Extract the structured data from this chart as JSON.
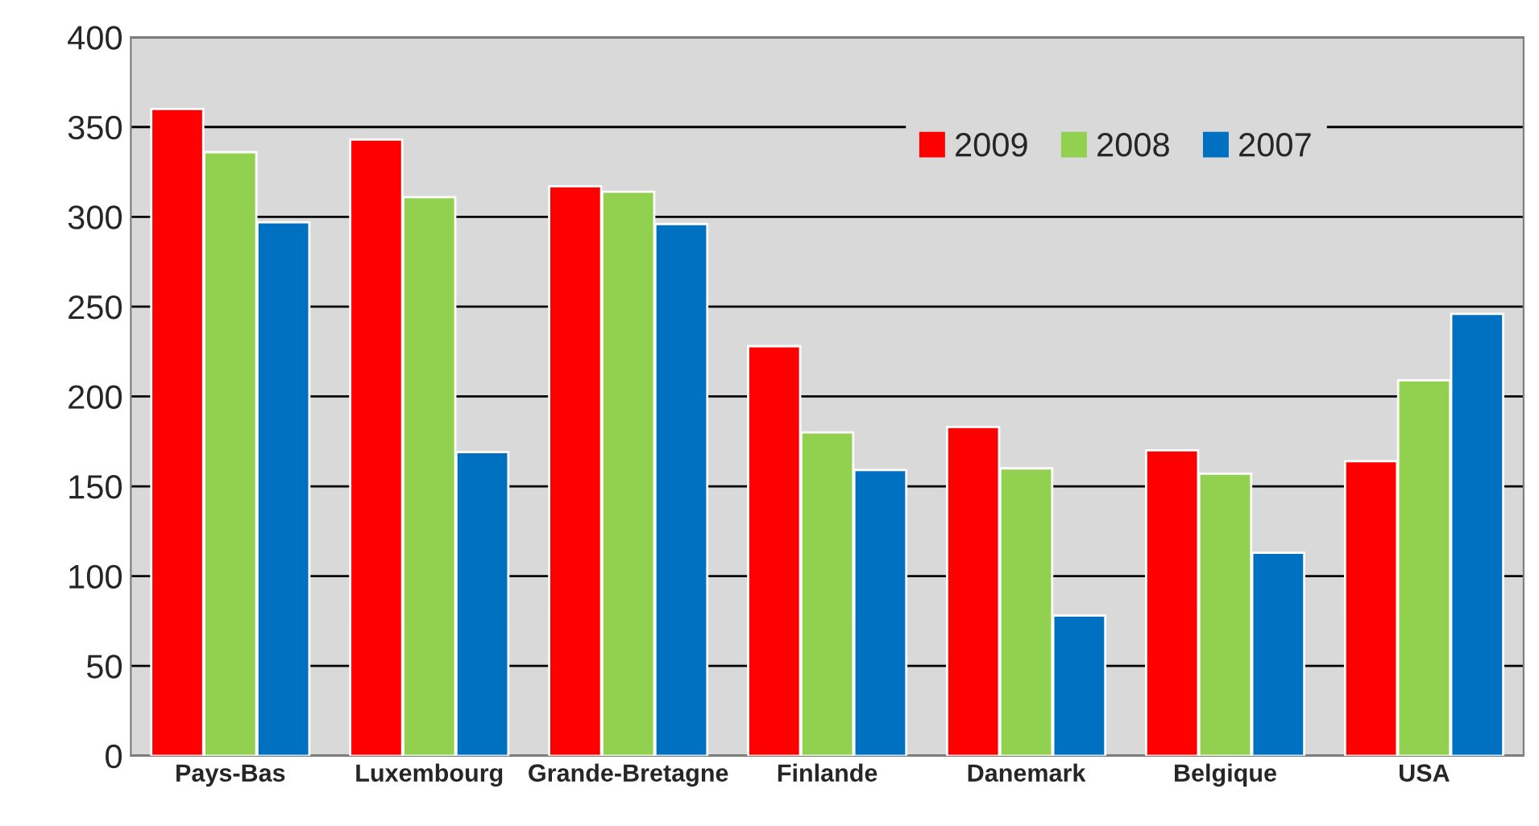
{
  "chart_data": {
    "type": "bar",
    "categories": [
      "Pays-Bas",
      "Luxembourg",
      "Grande-Bretagne",
      "Finlande",
      "Danemark",
      "Belgique",
      "USA"
    ],
    "series": [
      {
        "name": "2009",
        "color": "#ff0000",
        "values": [
          360,
          343,
          317,
          228,
          183,
          170,
          164
        ]
      },
      {
        "name": "2008",
        "color": "#92d050",
        "values": [
          336,
          311,
          314,
          180,
          160,
          157,
          209
        ]
      },
      {
        "name": "2007",
        "color": "#0070c0",
        "values": [
          297,
          169,
          296,
          159,
          78,
          113,
          246
        ]
      }
    ],
    "ylim": [
      0,
      400
    ],
    "yticks": [
      0,
      50,
      100,
      150,
      200,
      250,
      300,
      350,
      400
    ],
    "grid": "y",
    "legend": "top right"
  }
}
